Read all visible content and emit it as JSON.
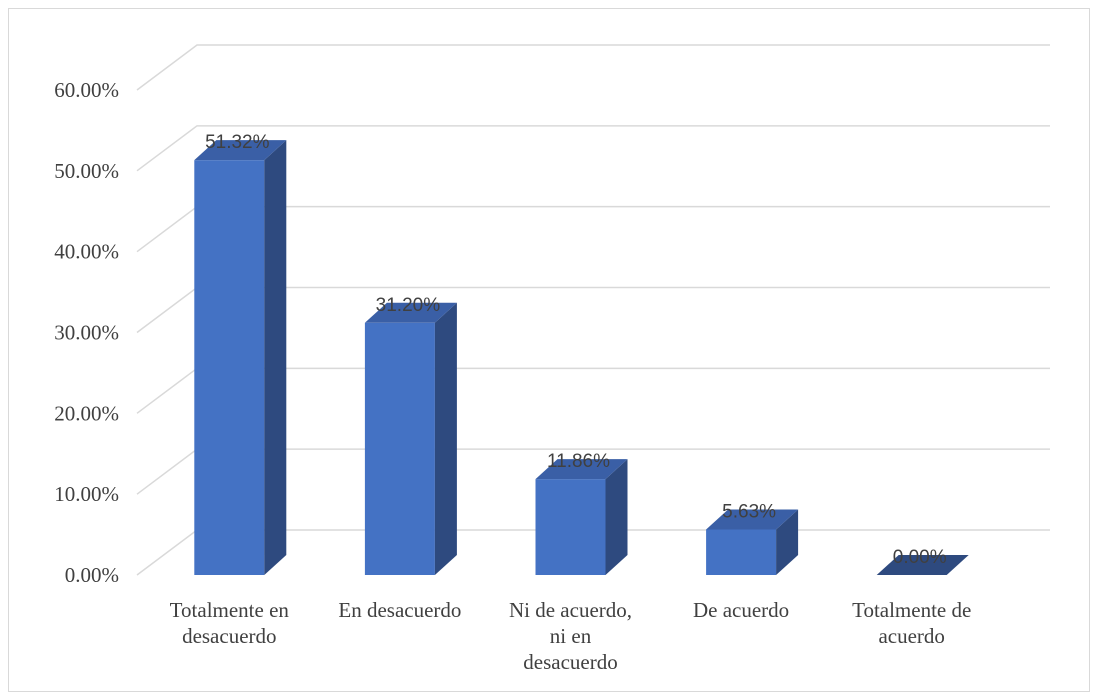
{
  "chart_data": {
    "type": "bar",
    "style": "3d-column",
    "categories": [
      [
        "Totalmente en",
        "desacuerdo"
      ],
      [
        "En desacuerdo"
      ],
      [
        "Ni de acuerdo,",
        "ni en",
        "desacuerdo"
      ],
      [
        "De acuerdo"
      ],
      [
        "Totalmente de",
        "acuerdo"
      ]
    ],
    "values": [
      51.32,
      31.2,
      11.86,
      5.63,
      0.0
    ],
    "data_labels": [
      "51.32%",
      "31.20%",
      "11.86%",
      "5.63%",
      "0.00%"
    ],
    "yticks": [
      "0.00%",
      "10.00%",
      "20.00%",
      "30.00%",
      "40.00%",
      "50.00%",
      "60.00%"
    ],
    "ylim": [
      0,
      60
    ],
    "grid": true,
    "legend": "none",
    "colors": {
      "front": "#4472c4",
      "side": "#2e4a7f",
      "top": "#3a5fa6",
      "grid": "#d9d9d9",
      "text": "#404040"
    }
  }
}
